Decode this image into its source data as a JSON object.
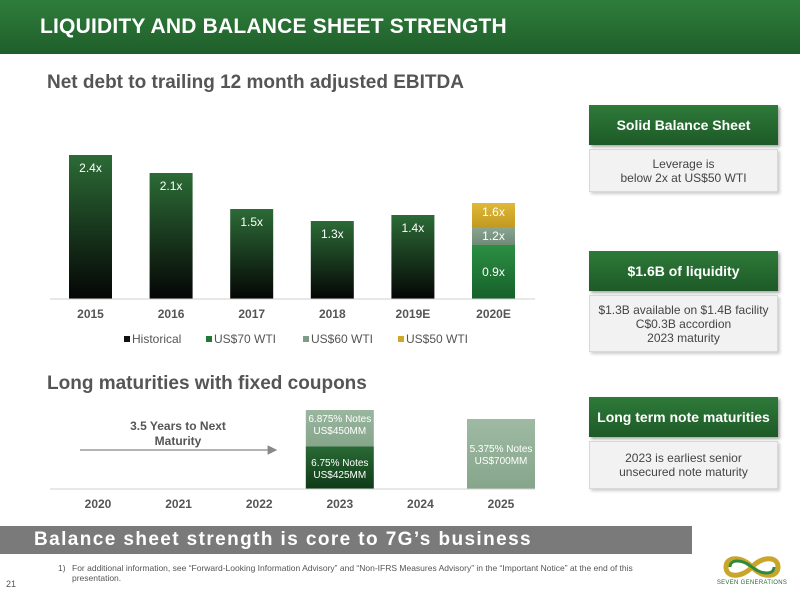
{
  "header": {
    "title": "LIQUIDITY AND BALANCE SHEET STRENGTH"
  },
  "sections": {
    "leverage_title": "Net debt to trailing 12 month adjusted EBITDA",
    "maturities_title": "Long maturities with fixed coupons"
  },
  "colors": {
    "brand_green": "#1f5f2a",
    "bar_dark_top": "#2c6b36",
    "bar_dark_bottom": "#050505",
    "us70_green": "#1f7a35",
    "us60_gray": "#7f9a86",
    "us50_gold": "#d1a728",
    "footer_gray": "#7a7a7a"
  },
  "chart_data": [
    {
      "type": "bar",
      "title": "Net debt to trailing 12 month adjusted EBITDA",
      "categories": [
        "2015",
        "2016",
        "2017",
        "2018",
        "2019E",
        "2020E"
      ],
      "series": [
        {
          "name": "Historical",
          "values": [
            2.4,
            2.1,
            1.5,
            1.3,
            1.4,
            null
          ],
          "labels": [
            "2.4x",
            "2.1x",
            "1.5x",
            "1.3x",
            "1.4x",
            ""
          ]
        },
        {
          "name": "US$70 WTI",
          "values": [
            null,
            null,
            null,
            null,
            null,
            0.9
          ],
          "labels": [
            "",
            "",
            "",
            "",
            "",
            "0.9x"
          ]
        },
        {
          "name": "US$60 WTI",
          "values": [
            null,
            null,
            null,
            null,
            null,
            1.2
          ],
          "labels": [
            "",
            "",
            "",
            "",
            "",
            "1.2x"
          ]
        },
        {
          "name": "US$50 WTI",
          "values": [
            null,
            null,
            null,
            null,
            null,
            1.6
          ],
          "labels": [
            "",
            "",
            "",
            "",
            "",
            "1.6x"
          ]
        }
      ],
      "ylim": [
        0,
        2.6
      ],
      "legend": "bottom",
      "grid": false
    },
    {
      "type": "bar",
      "title": "Long maturities with fixed coupons",
      "categories": [
        "2020",
        "2021",
        "2022",
        "2023",
        "2024",
        "2025"
      ],
      "maturities": [
        {
          "year": "2023",
          "rate": "6.75% Notes",
          "amount": "US$425MM",
          "amount_mm": 425
        },
        {
          "year": "2023",
          "rate": "6.875% Notes",
          "amount": "US$450MM",
          "amount_mm": 450
        },
        {
          "year": "2025",
          "rate": "5.375% Notes",
          "amount": "US$700MM",
          "amount_mm": 700
        }
      ],
      "annotation": {
        "line1": "3.5 Years to Next",
        "line2": "Maturity"
      }
    }
  ],
  "cards": [
    {
      "title": "Solid Balance Sheet",
      "lines": [
        "Leverage is",
        "below 2x at US$50 WTI"
      ]
    },
    {
      "title": "$1.6B of liquidity",
      "lines": [
        "$1.3B available on $1.4B facility",
        "C$0.3B accordion",
        "2023 maturity"
      ]
    },
    {
      "title": "Long term note maturities",
      "lines": [
        "2023 is earliest senior",
        "unsecured note maturity"
      ]
    }
  ],
  "footer": {
    "message": "Balance sheet strength is core to 7G’s business",
    "footnote_num": "1)",
    "footnote": "For additional information, see “Forward-Looking Information Advisory” and “Non-IFRS Measures Advisory” in the “Important Notice” at the end of this presentation.",
    "page_number": "21"
  },
  "logo": {
    "text": "SEVEN GENERATIONS"
  }
}
